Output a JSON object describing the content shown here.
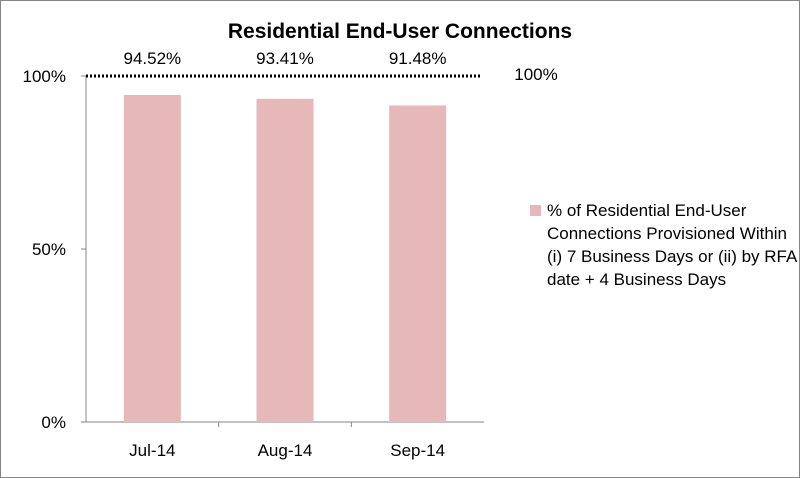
{
  "chart_data": {
    "type": "bar",
    "title": "Residential End-User Connections",
    "categories": [
      "Jul-14",
      "Aug-14",
      "Sep-14"
    ],
    "series": [
      {
        "name": "% of Residential End-User Connections Provisioned Within (i) 7 Business Days or (ii) by RFA date + 4 Business Days",
        "values": [
          94.52,
          93.41,
          91.48
        ],
        "value_labels": [
          "94.52%",
          "93.41%",
          "91.48%"
        ],
        "color": "#e6b8b7"
      }
    ],
    "target": {
      "value": 100,
      "label": "100%",
      "style": "dotted",
      "color": "#000000"
    },
    "ylim": [
      0,
      100
    ],
    "yticks": [
      {
        "value": 0,
        "label": "0%"
      },
      {
        "value": 50,
        "label": "50%"
      },
      {
        "value": 100,
        "label": "100%"
      }
    ],
    "xlabel": "",
    "ylabel": "",
    "grid": false,
    "legend": "right"
  }
}
